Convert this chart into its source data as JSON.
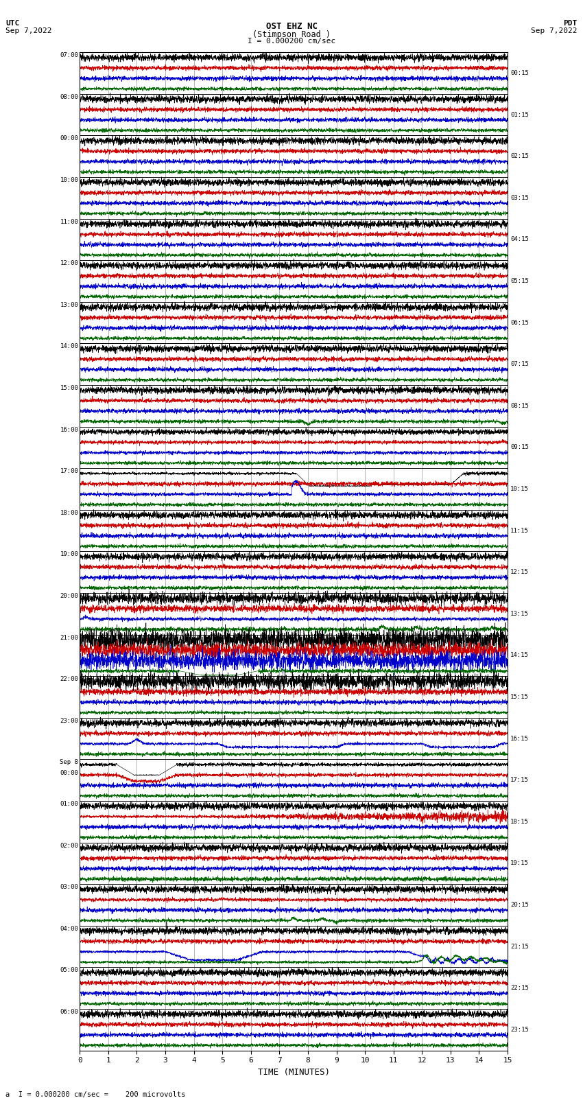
{
  "title_line1": "OST EHZ NC",
  "title_line2": "(Stimpson Road )",
  "scale_label": "I = 0.000200 cm/sec",
  "utc_label": "UTC",
  "utc_date": "Sep 7,2022",
  "pdt_label": "PDT",
  "pdt_date": "Sep 7,2022",
  "bottom_label": "a  I = 0.000200 cm/sec =    200 microvolts",
  "xlabel": "TIME (MINUTES)",
  "bg_color": "#ffffff",
  "grid_color": "#aaaaaa",
  "trace_colors": [
    "#000000",
    "#cc0000",
    "#0000cc",
    "#006600"
  ],
  "left_time_labels": [
    "07:00",
    "08:00",
    "09:00",
    "10:00",
    "11:00",
    "12:00",
    "13:00",
    "14:00",
    "15:00",
    "16:00",
    "17:00",
    "18:00",
    "19:00",
    "20:00",
    "21:00",
    "22:00",
    "23:00",
    "Sep 8\n00:00",
    "01:00",
    "02:00",
    "03:00",
    "04:00",
    "05:00",
    "06:00"
  ],
  "right_time_labels": [
    "00:15",
    "01:15",
    "02:15",
    "03:15",
    "04:15",
    "05:15",
    "06:15",
    "07:15",
    "08:15",
    "09:15",
    "10:15",
    "11:15",
    "12:15",
    "13:15",
    "14:15",
    "15:15",
    "16:15",
    "17:15",
    "18:15",
    "19:15",
    "20:15",
    "21:15",
    "22:15",
    "23:15"
  ],
  "n_rows": 24,
  "traces_per_row": 4,
  "x_min": 0,
  "x_max": 15,
  "x_ticks": [
    0,
    1,
    2,
    3,
    4,
    5,
    6,
    7,
    8,
    9,
    10,
    11,
    12,
    13,
    14,
    15
  ],
  "fig_width": 8.5,
  "fig_height": 16.13
}
